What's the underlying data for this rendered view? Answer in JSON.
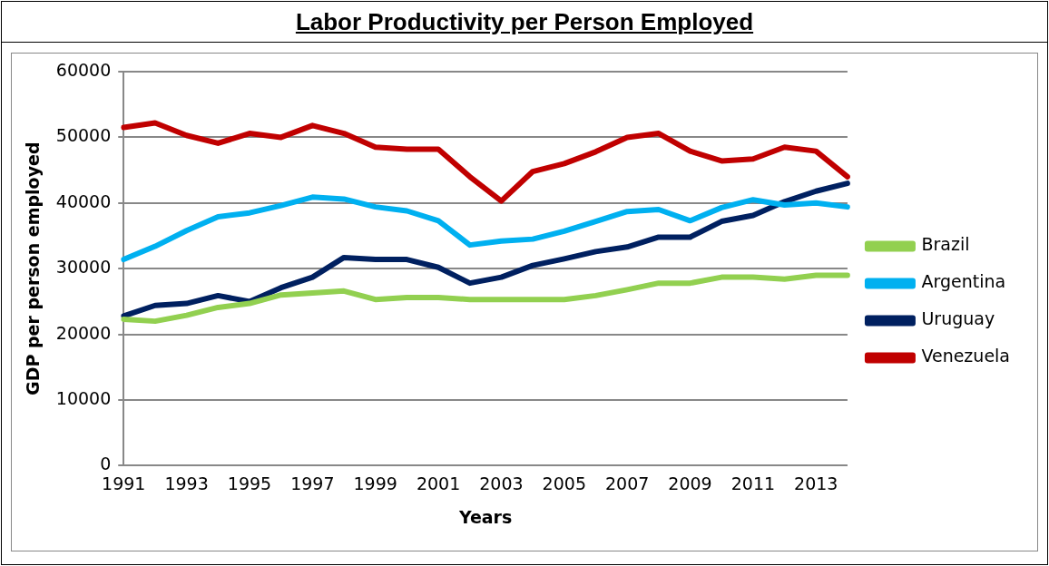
{
  "chart_data": {
    "type": "line",
    "title": "Labor Productivity per Person Employed",
    "xlabel": "Years",
    "ylabel": "GDP per person employed",
    "categories": [
      "1991",
      null,
      "1993",
      null,
      "1995",
      null,
      "1997",
      null,
      "1999",
      null,
      "2001",
      null,
      "2003",
      null,
      "2005",
      null,
      "2007",
      null,
      "2009",
      null,
      "2011",
      null,
      "2013",
      null
    ],
    "ylim": [
      0,
      60000
    ],
    "yticks": [
      0,
      10000,
      20000,
      30000,
      40000,
      50000,
      60000
    ],
    "grid": "y",
    "legend": "right",
    "marker": "none",
    "line_style": "solid",
    "series": [
      {
        "name": "Brazil",
        "color": "#92d050",
        "values": [
          22300,
          22000,
          22900,
          24100,
          24700,
          26000,
          26300,
          26600,
          25300,
          25600,
          25600,
          25300,
          25300,
          25300,
          25300,
          25900,
          26800,
          27800,
          27800,
          28700,
          28700,
          28400,
          29000,
          29000
        ]
      },
      {
        "name": "Argentina",
        "color": "#00b0f0",
        "values": [
          31400,
          33400,
          35800,
          37900,
          38500,
          39600,
          40900,
          40600,
          39400,
          38800,
          37300,
          33600,
          34200,
          34500,
          35700,
          37200,
          38700,
          39000,
          37300,
          39300,
          40500,
          39700,
          40000,
          39400
        ]
      },
      {
        "name": "Uruguay",
        "color": "#002060",
        "values": [
          22800,
          24400,
          24700,
          25900,
          25000,
          27100,
          28700,
          31700,
          31400,
          31400,
          30200,
          27800,
          28700,
          30500,
          31500,
          32600,
          33300,
          34800,
          34800,
          37200,
          38100,
          40200,
          41800,
          43000
        ]
      },
      {
        "name": "Venezuela",
        "color": "#c00000",
        "values": [
          51500,
          52200,
          50300,
          49100,
          50600,
          50000,
          51800,
          50600,
          48500,
          48200,
          48200,
          44000,
          40300,
          44800,
          46000,
          47800,
          50000,
          50600,
          47900,
          46400,
          46700,
          48500,
          47900,
          44000
        ]
      }
    ]
  }
}
